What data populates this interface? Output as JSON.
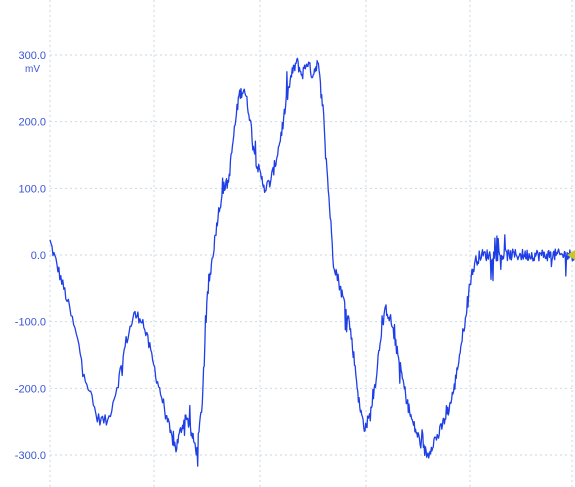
{
  "chart_data": {
    "type": "line",
    "title": "",
    "xlabel": "",
    "ylabel": "",
    "y_unit": "mV",
    "ylim": [
      -325,
      345
    ],
    "xlim": [
      0,
      100
    ],
    "yticks": [
      {
        "value": 300,
        "label": "300.0"
      },
      {
        "value": 200,
        "label": "200.0"
      },
      {
        "value": 100,
        "label": "100.0"
      },
      {
        "value": 0,
        "label": "0.0"
      },
      {
        "value": -100,
        "label": "-100.0"
      },
      {
        "value": -200,
        "label": "-200.0"
      },
      {
        "value": -300,
        "label": "-300.0"
      }
    ],
    "grid": true,
    "grid_style": "dotted",
    "trigger_marker": {
      "level": 0,
      "color": "#c8c820",
      "position": "right"
    },
    "series": [
      {
        "color": "#1f3fe6",
        "x": [
          0,
          1.5,
          3,
          5,
          7,
          9,
          11,
          13,
          14.5,
          16,
          17.5,
          19,
          20.5,
          22,
          23,
          24,
          25,
          26,
          27,
          28,
          29,
          30,
          31,
          32,
          33,
          34,
          35,
          36,
          37,
          38,
          39,
          40,
          41,
          42,
          43,
          44,
          45,
          46,
          47,
          48,
          49,
          50,
          51,
          52,
          53,
          54,
          55,
          56,
          57,
          58,
          59,
          60,
          61,
          62,
          63,
          64,
          65,
          66,
          67,
          68,
          69,
          70,
          71,
          72,
          73,
          74,
          75,
          76,
          77,
          78,
          79,
          80,
          81,
          82,
          83,
          84,
          85,
          86,
          87,
          88,
          89,
          90,
          91,
          92,
          93,
          94,
          95,
          96,
          97,
          98,
          99,
          100
        ],
        "values": [
          20,
          -20,
          -60,
          -120,
          -190,
          -245,
          -250,
          -190,
          -130,
          -90,
          -95,
          -140,
          -190,
          -235,
          -270,
          -290,
          -260,
          -240,
          -270,
          -295,
          -220,
          -60,
          0,
          60,
          100,
          110,
          180,
          240,
          250,
          210,
          150,
          120,
          100,
          110,
          140,
          180,
          230,
          270,
          290,
          270,
          290,
          270,
          290,
          220,
          100,
          -10,
          -40,
          -70,
          -100,
          -160,
          -230,
          -260,
          -240,
          -190,
          -120,
          -80,
          -100,
          -140,
          -180,
          -220,
          -250,
          -270,
          -290,
          -300,
          -280,
          -270,
          -250,
          -230,
          -200,
          -150,
          -100,
          -40,
          -10,
          0,
          0,
          0,
          0,
          0,
          0,
          0,
          0,
          0,
          0,
          0,
          0,
          0,
          0,
          0,
          0,
          0,
          0,
          0
        ]
      }
    ]
  }
}
